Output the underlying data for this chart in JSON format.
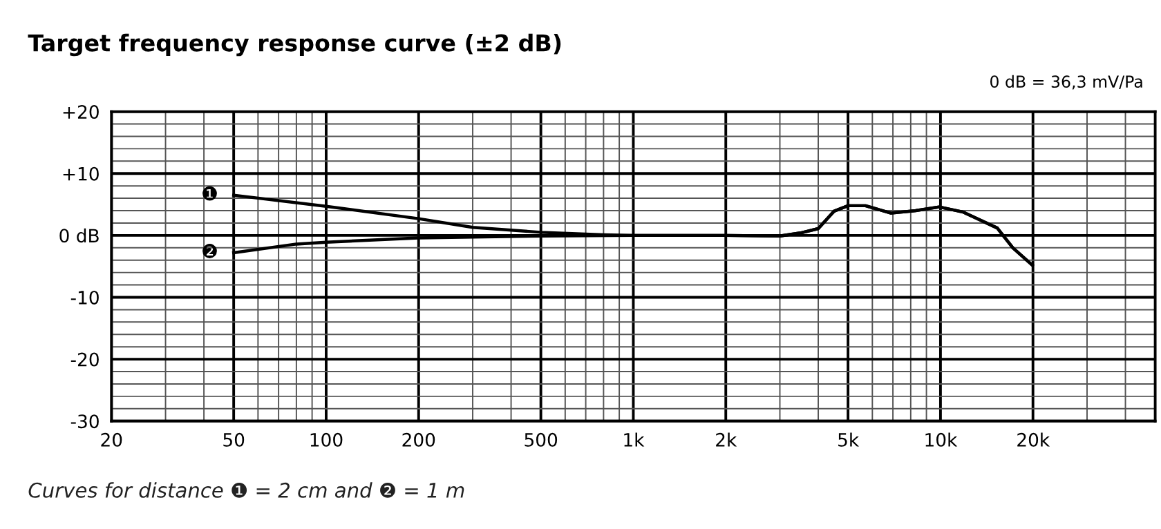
{
  "chart_data": {
    "type": "line",
    "title": "Target frequency response curve (±2 dB)",
    "subtitle": "0 dB = 36,3 mV/Pa",
    "annotations": [
      "Curves for distance ❶ = 2 cm and ❷ = 1 m"
    ],
    "series": [
      {
        "name": "❶",
        "color": "#000000",
        "x": [
          50,
          100,
          200,
          300,
          500,
          800,
          1000,
          2000,
          3000,
          3500,
          4000,
          4500,
          5000,
          5700,
          6900,
          8300,
          9900,
          11800,
          13300,
          15300,
          17200,
          19900
        ],
        "values": [
          6.5,
          4.7,
          2.7,
          1.3,
          0.5,
          0.1,
          0,
          0,
          -0.1,
          0.4,
          1.1,
          3.9,
          4.8,
          4.8,
          3.6,
          4.0,
          4.6,
          3.8,
          2.6,
          1.2,
          -2.0,
          -4.8
        ]
      },
      {
        "name": "❷",
        "color": "#000000",
        "x": [
          50,
          80,
          100,
          200,
          500,
          1000,
          2000,
          3000,
          3500,
          4000,
          4500,
          5000,
          5700,
          6900,
          8300,
          9900,
          11800,
          13300,
          15300,
          17200,
          19900
        ],
        "values": [
          -2.8,
          -1.4,
          -1.1,
          -0.4,
          -0.1,
          0,
          0,
          -0.1,
          0.4,
          1.1,
          3.9,
          4.8,
          4.8,
          3.6,
          4.0,
          4.6,
          3.8,
          2.6,
          1.2,
          -2.0,
          -4.8
        ]
      }
    ],
    "log": "x",
    "xlim": [
      20,
      50000
    ],
    "ylim": [
      -30,
      20
    ],
    "xticks": [
      20,
      50,
      100,
      200,
      500,
      {
        "value": 1000,
        "label": "1k"
      },
      {
        "value": 2000,
        "label": "2k"
      },
      {
        "value": 5000,
        "label": "5k"
      },
      {
        "value": 10000,
        "label": "10k"
      },
      {
        "value": 20000,
        "label": "20k"
      }
    ],
    "yticks": [
      {
        "value": 20,
        "label": "+20"
      },
      {
        "value": 10,
        "label": "+10"
      },
      {
        "value": 0,
        "label": "0 dB"
      },
      -10,
      -20,
      -30
    ],
    "grid": true,
    "marker": "none",
    "line_style": "solid",
    "legend": false
  }
}
